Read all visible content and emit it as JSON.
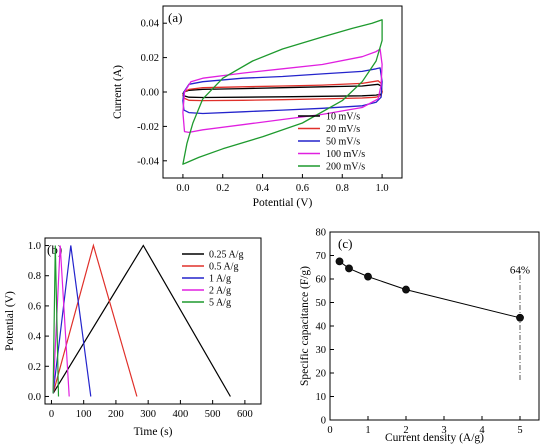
{
  "chart_data": [
    {
      "panel": "(a)",
      "type": "line",
      "xlabel": "Potential (V)",
      "ylabel": "Current (A)",
      "xlim": [
        -0.1,
        1.1
      ],
      "ylim": [
        -0.05,
        0.05
      ],
      "xticks": [
        "0.0",
        "0.2",
        "0.4",
        "0.6",
        "0.8",
        "1.0"
      ],
      "yticks": [
        "-0.04",
        "-0.02",
        "0.00",
        "0.02",
        "0.04"
      ],
      "legend_position": "bottom-right",
      "series": [
        {
          "name": "10 mV/s",
          "color": "#000000",
          "x": [
            0.0,
            0.005,
            0.03,
            0.1,
            0.3,
            0.5,
            0.7,
            0.9,
            0.98,
            0.995,
            1.0,
            0.995,
            0.97,
            0.9,
            0.7,
            0.5,
            0.3,
            0.1,
            0.03,
            0.005,
            0.0
          ],
          "y": [
            -0.001,
            0.0,
            0.001,
            0.0015,
            0.002,
            0.0025,
            0.003,
            0.0035,
            0.0045,
            0.0035,
            0.0,
            -0.0012,
            -0.0018,
            -0.0022,
            -0.0025,
            -0.0028,
            -0.003,
            -0.0032,
            -0.003,
            -0.0022,
            -0.001
          ]
        },
        {
          "name": "20 mV/s",
          "color": "#e0302a",
          "x": [
            0.0,
            0.005,
            0.03,
            0.1,
            0.3,
            0.5,
            0.7,
            0.9,
            0.98,
            0.995,
            1.0,
            0.995,
            0.97,
            0.9,
            0.7,
            0.5,
            0.3,
            0.1,
            0.03,
            0.005,
            0.0
          ],
          "y": [
            -0.002,
            0.0,
            0.0015,
            0.0025,
            0.003,
            0.0035,
            0.004,
            0.005,
            0.0065,
            0.005,
            0.0,
            -0.002,
            -0.003,
            -0.0035,
            -0.004,
            -0.0045,
            -0.0048,
            -0.005,
            -0.0048,
            -0.0035,
            -0.002
          ]
        },
        {
          "name": "50 mV/s",
          "color": "#2424cc",
          "x": [
            0.0,
            0.005,
            0.03,
            0.1,
            0.3,
            0.5,
            0.7,
            0.9,
            0.97,
            0.99,
            1.0,
            0.995,
            0.97,
            0.9,
            0.7,
            0.5,
            0.3,
            0.1,
            0.03,
            0.005,
            0.0
          ],
          "y": [
            -0.005,
            0.0,
            0.0045,
            0.006,
            0.008,
            0.009,
            0.0105,
            0.012,
            0.0135,
            0.014,
            0.006,
            -0.003,
            -0.006,
            -0.008,
            -0.0095,
            -0.0105,
            -0.0115,
            -0.0125,
            -0.012,
            -0.0105,
            -0.005
          ]
        },
        {
          "name": "100 mV/s",
          "color": "#e020e0",
          "x": [
            0.0,
            0.008,
            0.04,
            0.1,
            0.3,
            0.5,
            0.7,
            0.9,
            0.97,
            0.99,
            1.0,
            0.995,
            0.98,
            0.9,
            0.7,
            0.5,
            0.3,
            0.1,
            0.03,
            0.008,
            0.0
          ],
          "y": [
            -0.012,
            0.0,
            0.006,
            0.008,
            0.011,
            0.0135,
            0.016,
            0.0205,
            0.0235,
            0.025,
            0.016,
            0.004,
            -0.004,
            -0.009,
            -0.013,
            -0.016,
            -0.019,
            -0.022,
            -0.0235,
            -0.023,
            -0.012
          ]
        },
        {
          "name": "200 mV/s",
          "color": "#1e9a2e",
          "x": [
            0.0,
            0.02,
            0.05,
            0.1,
            0.2,
            0.35,
            0.5,
            0.7,
            0.85,
            0.95,
            1.0,
            1.0,
            0.97,
            0.9,
            0.8,
            0.6,
            0.4,
            0.2,
            0.08,
            0.02,
            0.0
          ],
          "y": [
            -0.042,
            -0.03,
            -0.018,
            -0.004,
            0.008,
            0.018,
            0.025,
            0.032,
            0.037,
            0.04,
            0.042,
            0.03,
            0.018,
            0.006,
            -0.005,
            -0.018,
            -0.026,
            -0.033,
            -0.038,
            -0.041,
            -0.042
          ]
        }
      ]
    },
    {
      "panel": "(b)",
      "type": "line",
      "xlabel": "Time (s)",
      "ylabel": "Potential (V)",
      "xlim": [
        -20,
        650
      ],
      "ylim": [
        -0.05,
        1.05
      ],
      "xticks": [
        "0",
        "100",
        "200",
        "300",
        "400",
        "500",
        "600"
      ],
      "yticks": [
        "0.0",
        "0.2",
        "0.4",
        "0.6",
        "0.8",
        "1.0"
      ],
      "legend_position": "top-right",
      "series": [
        {
          "name": "0.25 A/g",
          "color": "#000000",
          "x": [
            5,
            285,
            555
          ],
          "y": [
            0.02,
            1.0,
            0.0
          ]
        },
        {
          "name": "0.5 A/g",
          "color": "#e0302a",
          "x": [
            5,
            130,
            265
          ],
          "y": [
            0.02,
            1.0,
            0.0
          ]
        },
        {
          "name": "1 A/g",
          "color": "#2424cc",
          "x": [
            5,
            60,
            122
          ],
          "y": [
            0.02,
            1.0,
            0.0
          ]
        },
        {
          "name": "2 A/g",
          "color": "#e020e0",
          "x": [
            5,
            27,
            55
          ],
          "y": [
            0.02,
            1.0,
            0.0
          ]
        },
        {
          "name": "5 A/g",
          "color": "#1e9a2e",
          "x": [
            5,
            12,
            22
          ],
          "y": [
            0.02,
            1.0,
            0.0
          ]
        }
      ]
    },
    {
      "panel": "(c)",
      "type": "scatter",
      "xlabel": "Current density (A/g)",
      "ylabel": "Specific capacitance (F/g)",
      "xlim": [
        0,
        5.5
      ],
      "ylim": [
        0,
        80
      ],
      "xticks": [
        "0",
        "1",
        "2",
        "3",
        "4",
        "5"
      ],
      "yticks": [
        "0",
        "10",
        "20",
        "30",
        "40",
        "50",
        "60",
        "70",
        "80"
      ],
      "x": [
        0.25,
        0.5,
        1,
        2,
        5
      ],
      "y": [
        67.5,
        64.5,
        61,
        55.5,
        43.5
      ],
      "retention_line": {
        "x": 5,
        "y_range": [
          17,
          64
        ]
      },
      "annotation": "64%"
    }
  ]
}
